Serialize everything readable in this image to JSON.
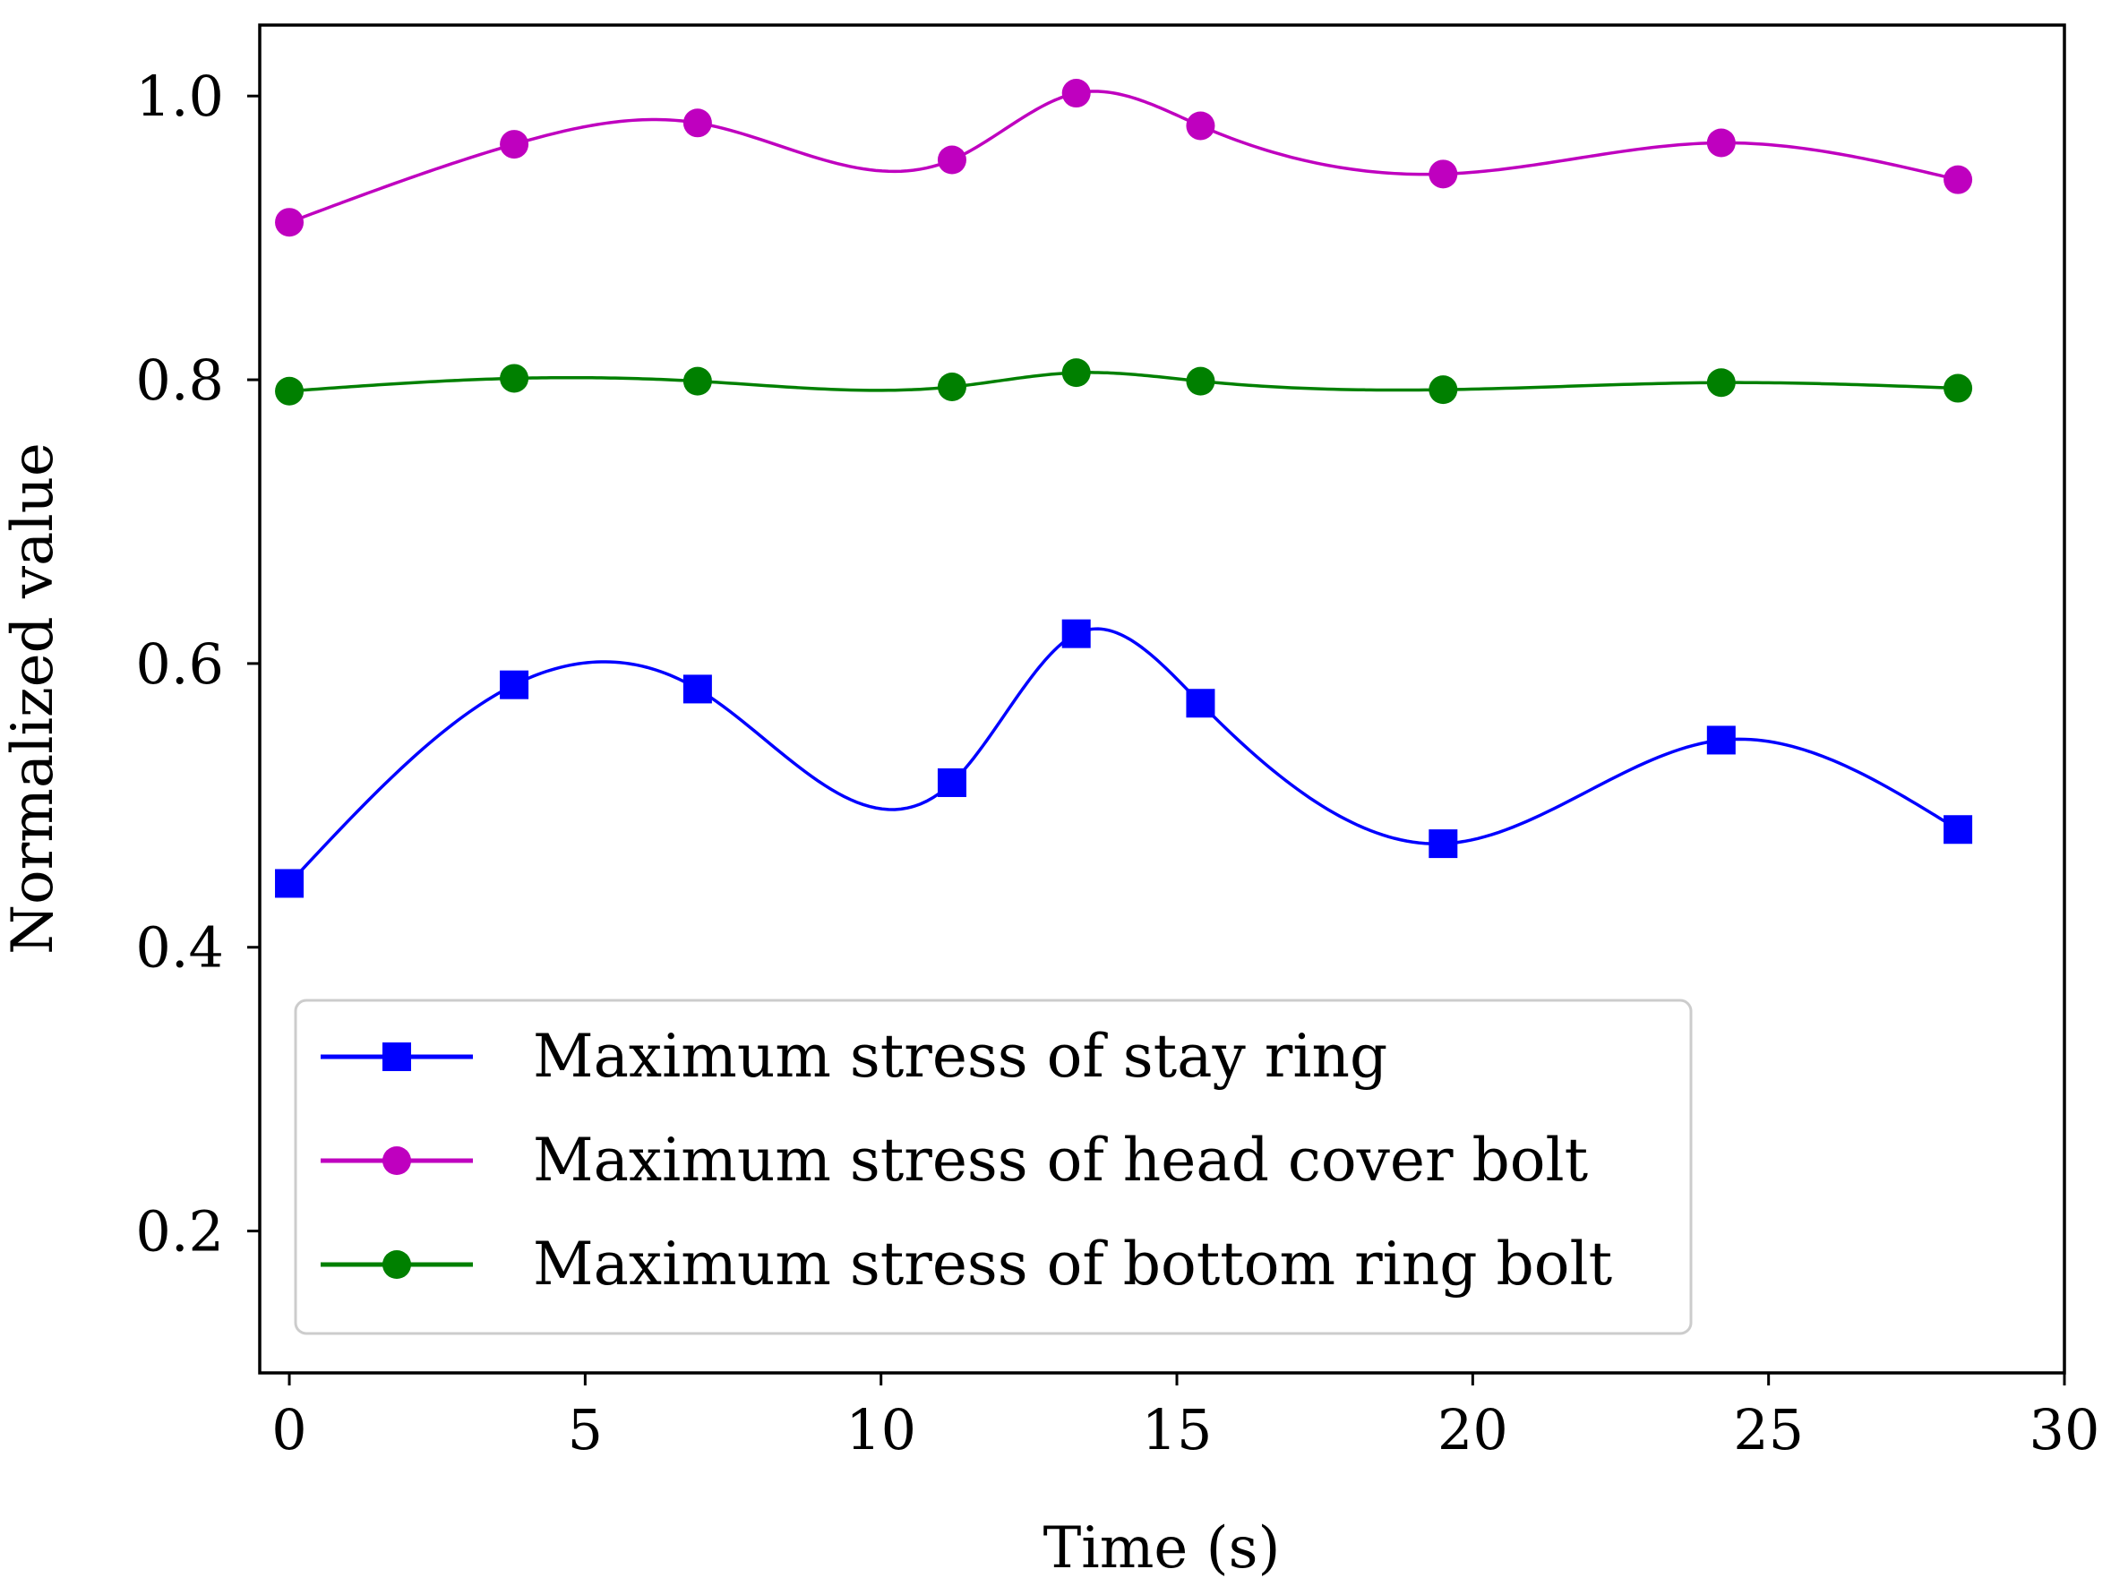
{
  "chart_data": {
    "type": "line",
    "title": "",
    "xlabel": "Time (s)",
    "ylabel": "Normalized value",
    "xlim": [
      -0.5,
      30
    ],
    "ylim": [
      0.1,
      1.05
    ],
    "xticks": [
      0,
      5,
      10,
      15,
      20,
      25,
      30
    ],
    "xtick_labels": [
      "0",
      "5",
      "10",
      "15",
      "20",
      "25",
      "30"
    ],
    "yticks": [
      0.2,
      0.4,
      0.6,
      0.8,
      1.0
    ],
    "ytick_labels": [
      "0.2",
      "0.4",
      "0.6",
      "0.8",
      "1.0"
    ],
    "grid": false,
    "legend_position": "lower-left",
    "x": [
      0,
      3.8,
      6.9,
      11.2,
      13.3,
      15.4,
      19.5,
      24.2,
      28.2
    ],
    "series": [
      {
        "name": "Maximum stress of stay ring",
        "color": "#0000ff",
        "marker": "square",
        "values": [
          0.445,
          0.585,
          0.582,
          0.516,
          0.621,
          0.572,
          0.473,
          0.546,
          0.483
        ]
      },
      {
        "name": "Maximum stress of head cover bolt",
        "color": "#bf00bf",
        "marker": "circle",
        "values": [
          0.911,
          0.966,
          0.981,
          0.955,
          1.002,
          0.979,
          0.945,
          0.967,
          0.941
        ]
      },
      {
        "name": "Maximum stress of bottom ring bolt",
        "color": "#008000",
        "marker": "circle",
        "values": [
          0.792,
          0.801,
          0.799,
          0.795,
          0.805,
          0.799,
          0.793,
          0.798,
          0.794
        ]
      }
    ]
  }
}
